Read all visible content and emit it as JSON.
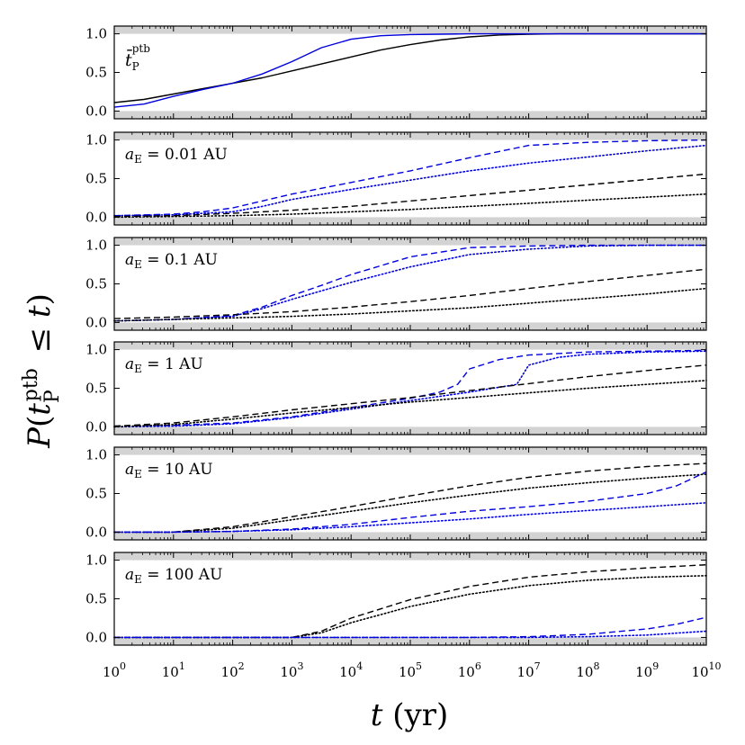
{
  "chart_data": {
    "type": "line",
    "layout": "six vertically stacked panels sharing a logarithmic x axis",
    "xlabel": "t (yr)",
    "ylabel": "P(t_P^ptb ≤ t)",
    "xscale": "log",
    "xlim": [
      1,
      10000000000
    ],
    "x_ticks": [
      {
        "value": 1,
        "base": "10",
        "exp": "0"
      },
      {
        "value": 10,
        "base": "10",
        "exp": "1"
      },
      {
        "value": 100,
        "base": "10",
        "exp": "2"
      },
      {
        "value": 1000,
        "base": "10",
        "exp": "3"
      },
      {
        "value": 10000,
        "base": "10",
        "exp": "4"
      },
      {
        "value": 100000,
        "base": "10",
        "exp": "5"
      },
      {
        "value": 1000000,
        "base": "10",
        "exp": "6"
      },
      {
        "value": 10000000,
        "base": "10",
        "exp": "7"
      },
      {
        "value": 100000000,
        "base": "10",
        "exp": "8"
      },
      {
        "value": 1000000000,
        "base": "10",
        "exp": "9"
      },
      {
        "value": 10000000000,
        "base": "10",
        "exp": "10"
      }
    ],
    "ylim": [
      -0.1,
      1.1
    ],
    "y_ticks": [
      "0.0",
      "0.5",
      "1.0"
    ],
    "colors": {
      "black": "#000000",
      "blue": "#0000dd",
      "band": "#d3d3d3"
    },
    "panels": [
      {
        "label": {
          "main": "t̄",
          "sub": "P",
          "sup": "ptb"
        },
        "series": [
          {
            "name": "black solid",
            "color": "black",
            "style": "solid",
            "x": [
              0,
              0.5,
              1,
              1.5,
              2,
              2.5,
              3,
              3.5,
              4,
              4.5,
              5,
              5.5,
              6,
              6.5,
              7,
              7.5,
              8,
              9,
              10
            ],
            "y": [
              0.11,
              0.15,
              0.22,
              0.29,
              0.36,
              0.43,
              0.52,
              0.61,
              0.7,
              0.79,
              0.86,
              0.92,
              0.96,
              0.985,
              0.995,
              1.0,
              1.0,
              1.0,
              1.0
            ]
          },
          {
            "name": "blue solid",
            "color": "blue",
            "style": "solid",
            "x": [
              0,
              0.5,
              1,
              1.5,
              2,
              2.5,
              3,
              3.5,
              4,
              4.5,
              5,
              5.5,
              6,
              6.5,
              7,
              7.5,
              8,
              9,
              10
            ],
            "y": [
              0.05,
              0.09,
              0.19,
              0.28,
              0.36,
              0.48,
              0.64,
              0.82,
              0.93,
              0.975,
              0.99,
              0.995,
              1.0,
              1.0,
              1.0,
              1.0,
              1.0,
              1.0,
              1.0
            ]
          }
        ]
      },
      {
        "label": {
          "main": "a",
          "sub": "E",
          "text": " = 0.01 AU"
        },
        "series": [
          {
            "name": "blue dashed",
            "color": "blue",
            "style": "dashed",
            "x": [
              0,
              1,
              1.5,
              2,
              2.5,
              3,
              4,
              5,
              6,
              7,
              8,
              9,
              10
            ],
            "y": [
              0.02,
              0.04,
              0.07,
              0.12,
              0.21,
              0.3,
              0.45,
              0.6,
              0.77,
              0.93,
              0.97,
              0.99,
              1.0
            ]
          },
          {
            "name": "blue dotted",
            "color": "blue",
            "style": "dotted",
            "x": [
              0,
              1,
              2,
              2.5,
              3,
              4,
              5,
              6,
              7,
              8,
              9,
              10
            ],
            "y": [
              0.02,
              0.03,
              0.07,
              0.14,
              0.23,
              0.36,
              0.48,
              0.6,
              0.7,
              0.78,
              0.86,
              0.93
            ]
          },
          {
            "name": "black dashed",
            "color": "black",
            "style": "dashed",
            "x": [
              0,
              1,
              2,
              3,
              4,
              5,
              6,
              7,
              8,
              9,
              10
            ],
            "y": [
              0.01,
              0.02,
              0.05,
              0.09,
              0.14,
              0.21,
              0.28,
              0.35,
              0.42,
              0.49,
              0.56
            ]
          },
          {
            "name": "black dotted",
            "color": "black",
            "style": "dotted",
            "x": [
              0,
              1,
              2,
              3,
              4,
              5,
              6,
              7,
              8,
              9,
              10
            ],
            "y": [
              0.0,
              0.01,
              0.02,
              0.04,
              0.07,
              0.1,
              0.14,
              0.18,
              0.22,
              0.26,
              0.3
            ]
          }
        ]
      },
      {
        "label": {
          "main": "a",
          "sub": "E",
          "text": " = 0.1 AU"
        },
        "series": [
          {
            "name": "blue dashed",
            "color": "blue",
            "style": "dashed",
            "x": [
              0,
              1,
              2,
              2.5,
              3,
              3.5,
              4,
              5,
              6,
              7,
              8,
              10
            ],
            "y": [
              0.02,
              0.04,
              0.09,
              0.2,
              0.35,
              0.48,
              0.62,
              0.85,
              0.97,
              0.99,
              1.0,
              1.0
            ]
          },
          {
            "name": "blue dotted",
            "color": "blue",
            "style": "dotted",
            "x": [
              0,
              1,
              2,
              2.5,
              3,
              4,
              5,
              6,
              7,
              8,
              9,
              10
            ],
            "y": [
              0.02,
              0.04,
              0.08,
              0.18,
              0.3,
              0.52,
              0.72,
              0.88,
              0.95,
              0.99,
              1.0,
              1.0
            ]
          },
          {
            "name": "black dashed",
            "color": "black",
            "style": "dashed",
            "x": [
              0,
              1,
              2,
              3,
              4,
              5,
              6,
              7,
              8,
              9,
              10
            ],
            "y": [
              0.05,
              0.07,
              0.1,
              0.14,
              0.2,
              0.27,
              0.35,
              0.44,
              0.53,
              0.61,
              0.69
            ]
          },
          {
            "name": "black dotted",
            "color": "black",
            "style": "dotted",
            "x": [
              0,
              1,
              2,
              3,
              4,
              5,
              6,
              7,
              8,
              9,
              10
            ],
            "y": [
              0.02,
              0.04,
              0.06,
              0.08,
              0.11,
              0.15,
              0.19,
              0.25,
              0.31,
              0.37,
              0.44
            ]
          }
        ]
      },
      {
        "label": {
          "main": "a",
          "sub": "E",
          "text": " = 1 AU"
        },
        "series": [
          {
            "name": "blue dashed",
            "color": "blue",
            "style": "dashed",
            "x": [
              0,
              1,
              2,
              3,
              4,
              5,
              5.5,
              5.8,
              6,
              6.5,
              7,
              8,
              9,
              10
            ],
            "y": [
              0.01,
              0.02,
              0.05,
              0.13,
              0.25,
              0.37,
              0.45,
              0.55,
              0.75,
              0.87,
              0.93,
              0.97,
              0.98,
              0.99
            ]
          },
          {
            "name": "blue dotted",
            "color": "blue",
            "style": "dotted",
            "x": [
              0,
              1,
              2,
              3,
              4,
              5,
              6,
              6.8,
              7,
              7.5,
              8,
              9,
              10
            ],
            "y": [
              0.0,
              0.01,
              0.04,
              0.12,
              0.23,
              0.34,
              0.45,
              0.55,
              0.8,
              0.9,
              0.94,
              0.97,
              0.98
            ]
          },
          {
            "name": "black dashed",
            "color": "black",
            "style": "dashed",
            "x": [
              0,
              1,
              2,
              3,
              4,
              5,
              6,
              7,
              8,
              9,
              10
            ],
            "y": [
              0.01,
              0.05,
              0.13,
              0.22,
              0.3,
              0.38,
              0.47,
              0.56,
              0.65,
              0.73,
              0.8
            ]
          },
          {
            "name": "black dotted",
            "color": "black",
            "style": "dotted",
            "x": [
              0,
              1,
              2,
              3,
              4,
              5,
              6,
              7,
              8,
              9,
              10
            ],
            "y": [
              0.0,
              0.03,
              0.1,
              0.18,
              0.25,
              0.32,
              0.38,
              0.44,
              0.5,
              0.55,
              0.6
            ]
          }
        ]
      },
      {
        "label": {
          "main": "a",
          "sub": "E",
          "text": " = 10 AU"
        },
        "series": [
          {
            "name": "black dashed",
            "color": "black",
            "style": "dashed",
            "x": [
              0,
              1,
              2,
              3,
              4,
              5,
              6,
              7,
              8,
              9,
              10
            ],
            "y": [
              0.0,
              0.0,
              0.07,
              0.2,
              0.33,
              0.47,
              0.6,
              0.71,
              0.79,
              0.85,
              0.89
            ]
          },
          {
            "name": "black dotted",
            "color": "black",
            "style": "dotted",
            "x": [
              0,
              1,
              2,
              3,
              4,
              5,
              6,
              7,
              8,
              9,
              10
            ],
            "y": [
              0.0,
              0.0,
              0.05,
              0.16,
              0.27,
              0.38,
              0.48,
              0.57,
              0.64,
              0.7,
              0.75
            ]
          },
          {
            "name": "blue dashed",
            "color": "blue",
            "style": "dashed",
            "x": [
              0,
              1,
              2,
              3,
              4,
              5,
              6,
              7,
              8,
              8.5,
              9,
              9.5,
              10
            ],
            "y": [
              0.0,
              0.0,
              0.01,
              0.04,
              0.1,
              0.19,
              0.27,
              0.33,
              0.4,
              0.45,
              0.5,
              0.6,
              0.78
            ]
          },
          {
            "name": "blue dotted",
            "color": "blue",
            "style": "dotted",
            "x": [
              0,
              1,
              2,
              3,
              4,
              5,
              6,
              7,
              8,
              9,
              10
            ],
            "y": [
              0.0,
              0.0,
              0.01,
              0.03,
              0.07,
              0.12,
              0.17,
              0.23,
              0.28,
              0.33,
              0.38
            ]
          }
        ]
      },
      {
        "label": {
          "main": "a",
          "sub": "E",
          "text": " = 100 AU"
        },
        "series": [
          {
            "name": "black dashed",
            "color": "black",
            "style": "dashed",
            "x": [
              0,
              2,
              3,
              3.5,
              4,
              5,
              6,
              7,
              8,
              9,
              10
            ],
            "y": [
              0.0,
              0.0,
              0.0,
              0.08,
              0.25,
              0.49,
              0.66,
              0.78,
              0.85,
              0.9,
              0.94
            ]
          },
          {
            "name": "black dotted",
            "color": "black",
            "style": "dotted",
            "x": [
              0,
              2,
              3,
              3.5,
              4,
              5,
              6,
              7,
              8,
              9,
              10
            ],
            "y": [
              0.0,
              0.0,
              0.0,
              0.06,
              0.19,
              0.4,
              0.56,
              0.67,
              0.74,
              0.78,
              0.8
            ]
          },
          {
            "name": "blue dashed",
            "color": "blue",
            "style": "dashed",
            "x": [
              0,
              5,
              6,
              7,
              8,
              9,
              9.5,
              10
            ],
            "y": [
              0.0,
              0.0,
              0.0,
              0.01,
              0.04,
              0.11,
              0.17,
              0.26
            ]
          },
          {
            "name": "blue dotted",
            "color": "blue",
            "style": "dotted",
            "x": [
              0,
              6,
              7,
              8,
              9,
              10
            ],
            "y": [
              0.0,
              0.0,
              0.0,
              0.01,
              0.03,
              0.08
            ]
          }
        ]
      }
    ]
  }
}
